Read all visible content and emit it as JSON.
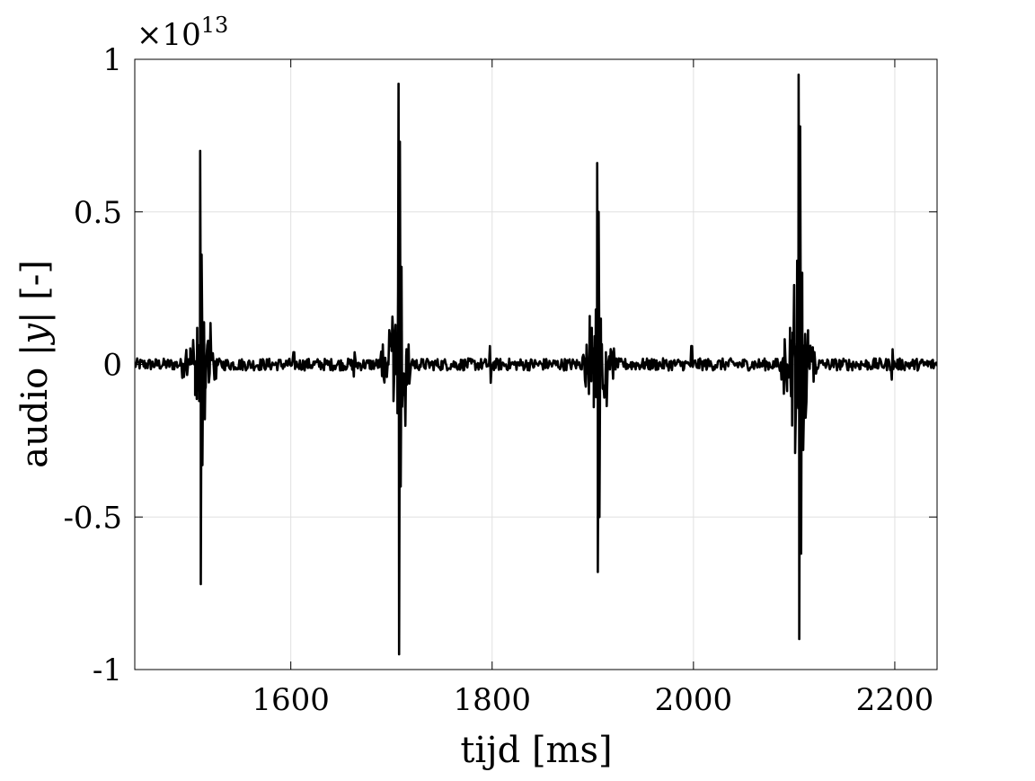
{
  "chart_data": {
    "type": "line",
    "title": "",
    "xlabel": "tijd [ms]",
    "ylabel_prefix": "audio |",
    "ylabel_var": "y",
    "ylabel_suffix": "| [-]",
    "y_exponent_base": "×10",
    "y_exponent_power": "13",
    "xlim": [
      1445,
      2242
    ],
    "ylim": [
      -1,
      1
    ],
    "y_scale_note": "values in units of 10^13",
    "x_ticks": [
      1600,
      1800,
      2000,
      2200
    ],
    "x_tick_labels": [
      "1600",
      "1800",
      "2000",
      "2200"
    ],
    "y_ticks": [
      -1,
      -0.5,
      0,
      0.5,
      1
    ],
    "y_tick_labels": [
      "-1",
      "-0.5",
      "0",
      "0.5",
      "1"
    ],
    "grid": true,
    "line_color": "#000000",
    "grid_color": "#e0e0e0",
    "baseline_noise_amplitude": 0.02,
    "small_clicks": [
      {
        "x": 1603,
        "amp": 0.04
      },
      {
        "x": 1663,
        "amp": 0.04
      },
      {
        "x": 1798,
        "amp": 0.06
      },
      {
        "x": 1998,
        "amp": 0.06
      },
      {
        "x": 2197,
        "amp": 0.05
      }
    ],
    "series": [
      {
        "values": [
          {
            "x": 1500,
            "y": 0.0
          },
          {
            "x": 1503,
            "y": 0.08
          },
          {
            "x": 1505,
            "y": -0.1
          },
          {
            "x": 1507,
            "y": 0.12
          },
          {
            "x": 1509,
            "y": -0.12
          },
          {
            "x": 1510,
            "y": 0.7
          },
          {
            "x": 1510.6,
            "y": -0.72
          },
          {
            "x": 1511.4,
            "y": 0.36
          },
          {
            "x": 1512.2,
            "y": -0.33
          },
          {
            "x": 1513,
            "y": 0.1
          },
          {
            "x": 1515,
            "y": -0.08
          },
          {
            "x": 1518,
            "y": 0.05
          },
          {
            "x": 1697,
            "y": 0.0
          },
          {
            "x": 1700,
            "y": 0.08
          },
          {
            "x": 1702,
            "y": -0.12
          },
          {
            "x": 1704,
            "y": 0.13
          },
          {
            "x": 1706,
            "y": -0.16
          },
          {
            "x": 1707,
            "y": 0.92
          },
          {
            "x": 1707.6,
            "y": -0.95
          },
          {
            "x": 1708.4,
            "y": 0.73
          },
          {
            "x": 1709.2,
            "y": -0.4
          },
          {
            "x": 1710,
            "y": 0.32
          },
          {
            "x": 1712,
            "y": -0.1
          },
          {
            "x": 1715,
            "y": 0.05
          },
          {
            "x": 1897,
            "y": 0.0
          },
          {
            "x": 1899,
            "y": 0.12
          },
          {
            "x": 1901,
            "y": -0.14
          },
          {
            "x": 1903,
            "y": 0.18
          },
          {
            "x": 1904.4,
            "y": 0.66
          },
          {
            "x": 1905,
            "y": -0.68
          },
          {
            "x": 1905.8,
            "y": 0.5
          },
          {
            "x": 1906.6,
            "y": -0.5
          },
          {
            "x": 1908,
            "y": 0.15
          },
          {
            "x": 1910,
            "y": -0.08
          },
          {
            "x": 1913,
            "y": 0.04
          },
          {
            "x": 2093,
            "y": 0.0
          },
          {
            "x": 2096,
            "y": 0.12
          },
          {
            "x": 2098,
            "y": -0.2
          },
          {
            "x": 2100,
            "y": 0.26
          },
          {
            "x": 2101,
            "y": -0.29
          },
          {
            "x": 2103,
            "y": 0.34
          },
          {
            "x": 2104.5,
            "y": 0.95
          },
          {
            "x": 2105.1,
            "y": -0.9
          },
          {
            "x": 2106,
            "y": 0.78
          },
          {
            "x": 2107,
            "y": -0.62
          },
          {
            "x": 2108,
            "y": 0.3
          },
          {
            "x": 2109,
            "y": -0.28
          },
          {
            "x": 2111,
            "y": 0.1
          },
          {
            "x": 2114,
            "y": 0.04
          }
        ]
      }
    ]
  }
}
